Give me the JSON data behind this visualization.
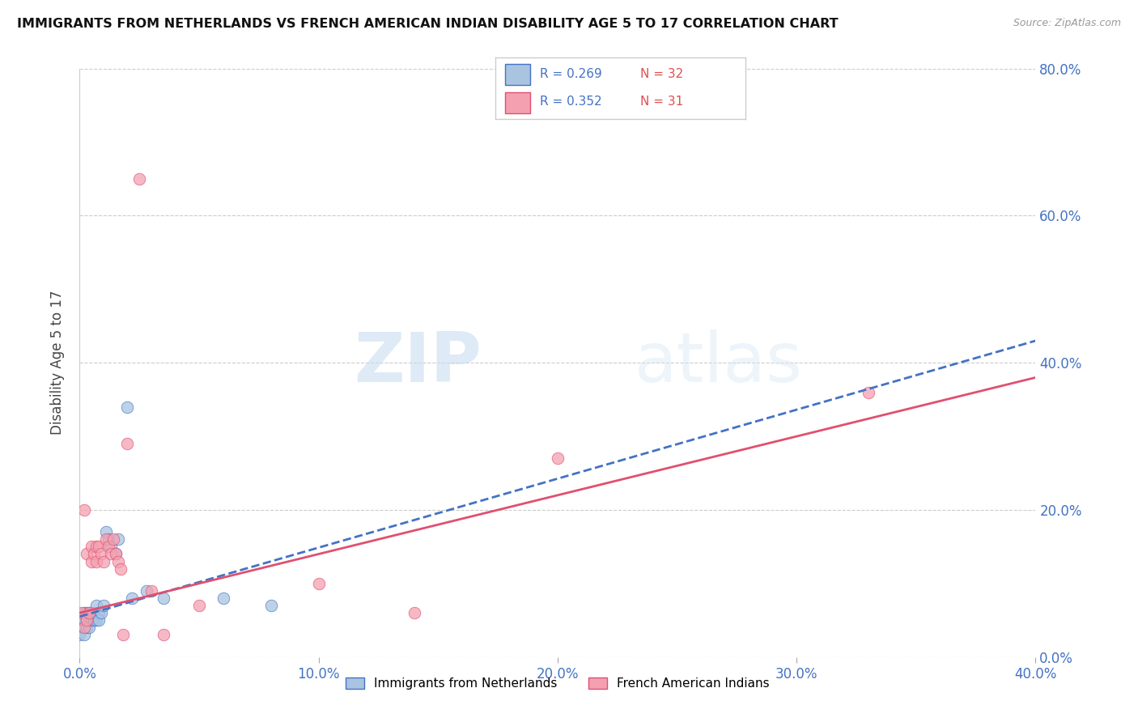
{
  "title": "IMMIGRANTS FROM NETHERLANDS VS FRENCH AMERICAN INDIAN DISABILITY AGE 5 TO 17 CORRELATION CHART",
  "source": "Source: ZipAtlas.com",
  "xlabel_tick_vals": [
    0.0,
    0.1,
    0.2,
    0.3,
    0.4
  ],
  "ylabel_tick_vals": [
    0.0,
    0.2,
    0.4,
    0.6,
    0.8
  ],
  "xlim": [
    0.0,
    0.4
  ],
  "ylim": [
    0.0,
    0.8
  ],
  "ylabel": "Disability Age 5 to 17",
  "legend_label1": "Immigrants from Netherlands",
  "legend_label2": "French American Indians",
  "R1": 0.269,
  "N1": 32,
  "R2": 0.352,
  "N2": 31,
  "color_blue": "#a8c4e0",
  "color_pink": "#f4a0b0",
  "line_blue": "#4472c4",
  "line_pink": "#e05070",
  "watermark_zip": "ZIP",
  "watermark_atlas": "atlas",
  "blue_scatter_x": [
    0.0,
    0.001,
    0.001,
    0.002,
    0.002,
    0.002,
    0.003,
    0.003,
    0.003,
    0.004,
    0.004,
    0.005,
    0.005,
    0.006,
    0.006,
    0.007,
    0.007,
    0.008,
    0.008,
    0.009,
    0.01,
    0.011,
    0.012,
    0.013,
    0.015,
    0.016,
    0.02,
    0.022,
    0.028,
    0.035,
    0.06,
    0.08
  ],
  "blue_scatter_y": [
    0.03,
    0.04,
    0.05,
    0.03,
    0.05,
    0.06,
    0.04,
    0.05,
    0.06,
    0.04,
    0.06,
    0.05,
    0.06,
    0.05,
    0.06,
    0.05,
    0.07,
    0.06,
    0.05,
    0.06,
    0.07,
    0.17,
    0.16,
    0.15,
    0.14,
    0.16,
    0.34,
    0.08,
    0.09,
    0.08,
    0.08,
    0.07
  ],
  "pink_scatter_x": [
    0.001,
    0.002,
    0.002,
    0.003,
    0.003,
    0.004,
    0.005,
    0.005,
    0.006,
    0.007,
    0.007,
    0.008,
    0.009,
    0.01,
    0.011,
    0.012,
    0.013,
    0.014,
    0.015,
    0.016,
    0.017,
    0.018,
    0.02,
    0.025,
    0.03,
    0.035,
    0.05,
    0.1,
    0.14,
    0.2,
    0.33
  ],
  "pink_scatter_y": [
    0.06,
    0.04,
    0.2,
    0.05,
    0.14,
    0.06,
    0.13,
    0.15,
    0.14,
    0.15,
    0.13,
    0.15,
    0.14,
    0.13,
    0.16,
    0.15,
    0.14,
    0.16,
    0.14,
    0.13,
    0.12,
    0.03,
    0.29,
    0.65,
    0.09,
    0.03,
    0.07,
    0.1,
    0.06,
    0.27,
    0.36
  ],
  "blue_line_x": [
    0.0,
    0.4
  ],
  "blue_line_y": [
    0.055,
    0.43
  ],
  "pink_line_x": [
    0.0,
    0.4
  ],
  "pink_line_y": [
    0.06,
    0.38
  ]
}
